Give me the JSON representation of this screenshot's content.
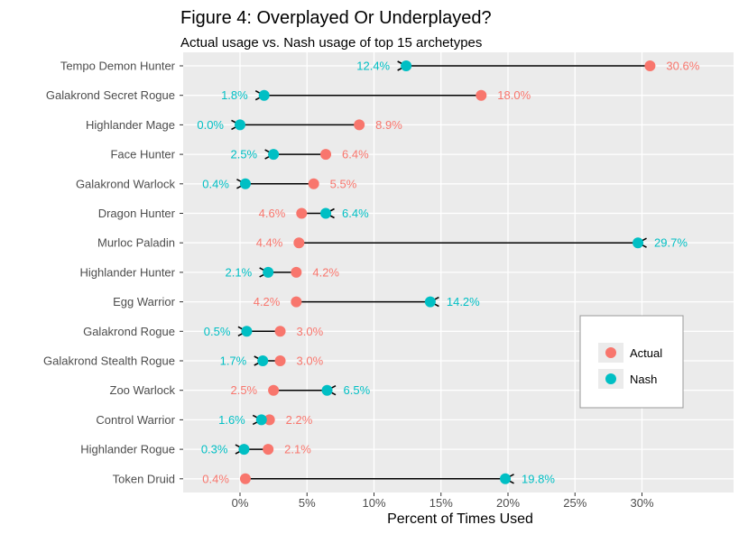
{
  "chart_data": {
    "type": "dumbbell-arrow",
    "title": "Figure 4: Overplayed Or Underplayed?",
    "subtitle": "Actual usage vs. Nash usage of top 15 archetypes",
    "xlabel": "Percent of Times Used",
    "ylabel": "",
    "xlim": [
      -4.2,
      35.5
    ],
    "x_ticks": [
      0,
      5,
      10,
      15,
      20,
      25,
      30
    ],
    "x_tick_labels": [
      "0%",
      "5%",
      "10%",
      "15%",
      "20%",
      "25%",
      "30%"
    ],
    "grid": true,
    "legend_position": "right",
    "categories": [
      "Tempo Demon Hunter",
      "Galakrond Secret Rogue",
      "Highlander Mage",
      "Face Hunter",
      "Galakrond Warlock",
      "Dragon Hunter",
      "Murloc Paladin",
      "Highlander Hunter",
      "Egg Warrior",
      "Galakrond Rogue",
      "Galakrond Stealth Rogue",
      "Zoo Warlock",
      "Control Warrior",
      "Highlander Rogue",
      "Token Druid"
    ],
    "series": [
      {
        "name": "Actual",
        "color": "#F8766D",
        "values": [
          30.6,
          18.0,
          8.9,
          6.4,
          5.5,
          4.6,
          4.4,
          4.2,
          4.2,
          3.0,
          3.0,
          2.5,
          2.2,
          2.1,
          0.4
        ],
        "labels": [
          "30.6%",
          "18.0%",
          "8.9%",
          "6.4%",
          "5.5%",
          "4.6%",
          "4.4%",
          "4.2%",
          "4.2%",
          "3.0%",
          "3.0%",
          "2.5%",
          "2.2%",
          "2.1%",
          "0.4%"
        ]
      },
      {
        "name": "Nash",
        "color": "#00BFC4",
        "values": [
          12.4,
          1.8,
          0.0,
          2.5,
          0.4,
          6.4,
          29.7,
          2.1,
          14.2,
          0.5,
          1.7,
          6.5,
          1.6,
          0.3,
          19.8
        ],
        "labels": [
          "12.4%",
          "1.8%",
          "0.0%",
          "2.5%",
          "0.4%",
          "6.4%",
          "29.7%",
          "2.1%",
          "14.2%",
          "0.5%",
          "1.7%",
          "6.5%",
          "1.6%",
          "0.3%",
          "19.8%"
        ]
      }
    ]
  }
}
